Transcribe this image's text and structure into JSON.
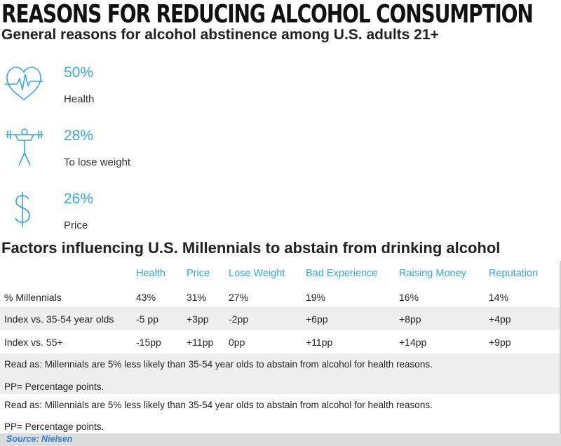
{
  "header": {
    "title": "REASONS FOR REDUCING ALCOHOL CONSUMPTION",
    "subtitle": "General reasons for alcohol abstinence among U.S. adults 21+"
  },
  "colors": {
    "accent": "#35a9dc",
    "row_alt": "#eeeeee",
    "source": "#2f7fd0"
  },
  "chart_data": [
    {
      "type": "table",
      "title": "",
      "rows": [
        {
          "icon": "heart-pulse-icon",
          "value": "50%",
          "label": "Health"
        },
        {
          "icon": "weightlifter-icon",
          "value": "28%",
          "label": "To lose weight"
        },
        {
          "icon": "dollar-sign-icon",
          "value": "26%",
          "label": "Price"
        }
      ]
    },
    {
      "type": "table",
      "title": "Factors influencing U.S. Millennials to abstain from drinking alcohol",
      "columns": [
        "",
        "Health",
        "Price",
        "Lose Weight",
        "Bad Experience",
        "Raising Money",
        "Reputation"
      ],
      "rows": [
        {
          "label": "% Millennials",
          "values": [
            "43%",
            "31%",
            "27%",
            "19%",
            "16%",
            "14%"
          ]
        },
        {
          "label": "Index vs. 35-54 year olds",
          "values": [
            "-5 pp",
            "+3pp",
            "-2pp",
            "+6pp",
            "+8pp",
            "+4pp"
          ]
        },
        {
          "label": "Index vs. 55+",
          "values": [
            "-15pp",
            "+11pp",
            "0pp",
            "+11pp",
            "+14pp",
            "+9pp"
          ]
        }
      ],
      "notes": [
        "Read as: Millennials are 5% less likely than 35-54 year olds to abstain from alcohol for health reasons.",
        "PP= Percentage points.",
        "Read as: Millennials are 5% less likely than 35-54 year olds to abstain from alcohol for health reasons.",
        "PP= Percentage points."
      ]
    }
  ],
  "source": "Source: Nielsen"
}
